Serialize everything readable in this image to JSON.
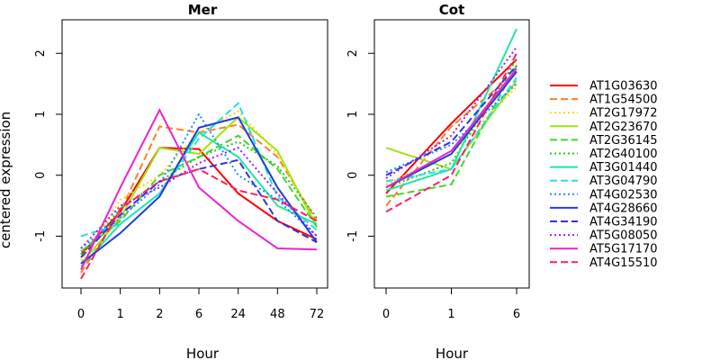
{
  "chart_data": [
    {
      "type": "line",
      "title": "Mer",
      "xlabel": "Hour",
      "ylabel": "centered expression",
      "categories": [
        "0",
        "1",
        "2",
        "6",
        "24",
        "48",
        "72"
      ],
      "ylim": [
        -1.85,
        2.55
      ],
      "yticks": [
        -1,
        0,
        1,
        2
      ],
      "series": [
        {
          "name": "AT1G03630",
          "values": [
            -1.3,
            -0.6,
            0.45,
            0.43,
            -0.3,
            -0.75,
            -1.05
          ]
        },
        {
          "name": "AT1G54500",
          "values": [
            -1.6,
            -0.6,
            0.8,
            0.7,
            0.83,
            0.3,
            -0.75
          ]
        },
        {
          "name": "AT2G17972",
          "values": [
            -1.4,
            -0.4,
            0.0,
            0.7,
            1.05,
            0.35,
            -0.8
          ]
        },
        {
          "name": "AT2G23670",
          "values": [
            -1.45,
            -0.7,
            0.45,
            0.35,
            0.95,
            0.4,
            -0.85
          ]
        },
        {
          "name": "AT2G36145",
          "values": [
            -1.25,
            -0.75,
            0.0,
            0.3,
            0.65,
            0.1,
            -0.85
          ]
        },
        {
          "name": "AT2G40100",
          "values": [
            -1.3,
            -0.55,
            -0.1,
            0.3,
            0.55,
            0.15,
            -0.7
          ]
        },
        {
          "name": "AT3G01440",
          "values": [
            -1.5,
            -0.8,
            -0.3,
            0.7,
            0.3,
            -0.5,
            -0.8
          ]
        },
        {
          "name": "AT3G04790",
          "values": [
            -1.0,
            -0.8,
            -0.3,
            0.6,
            1.18,
            -0.35,
            -0.9
          ]
        },
        {
          "name": "AT4G02530",
          "values": [
            -1.2,
            -0.7,
            -0.15,
            1.0,
            0.0,
            -0.4,
            -1.0
          ]
        },
        {
          "name": "AT4G28660",
          "values": [
            -1.45,
            -0.95,
            -0.35,
            0.78,
            0.95,
            -0.2,
            -1.1
          ]
        },
        {
          "name": "AT4G34190",
          "values": [
            -1.35,
            -0.65,
            -0.1,
            0.1,
            0.25,
            -0.75,
            -1.1
          ]
        },
        {
          "name": "AT5G08050",
          "values": [
            -1.2,
            -0.5,
            -0.2,
            0.2,
            0.45,
            -0.3,
            -1.0
          ]
        },
        {
          "name": "AT5G17170",
          "values": [
            -1.55,
            -0.2,
            1.07,
            -0.2,
            -0.75,
            -1.2,
            -1.22
          ]
        },
        {
          "name": "AT4G15510",
          "values": [
            -1.7,
            -0.55,
            -0.1,
            0.1,
            -0.25,
            -0.4,
            -0.75
          ]
        }
      ]
    },
    {
      "type": "line",
      "title": "Cot",
      "xlabel": "Hour",
      "ylabel": "",
      "categories": [
        "0",
        "1",
        "6"
      ],
      "ylim": [
        -1.85,
        2.55
      ],
      "yticks": [
        -1,
        0,
        1,
        2
      ],
      "series": [
        {
          "name": "AT1G03630",
          "values": [
            -0.3,
            0.85,
            1.9
          ]
        },
        {
          "name": "AT1G54500",
          "values": [
            -0.5,
            0.8,
            1.7
          ]
        },
        {
          "name": "AT2G17972",
          "values": [
            -0.15,
            0.35,
            1.45
          ]
        },
        {
          "name": "AT2G23670",
          "values": [
            0.45,
            0.1,
            1.55
          ]
        },
        {
          "name": "AT2G36145",
          "values": [
            -0.35,
            -0.15,
            1.8
          ]
        },
        {
          "name": "AT2G40100",
          "values": [
            -0.2,
            0.2,
            1.9
          ]
        },
        {
          "name": "AT3G01440",
          "values": [
            -0.25,
            0.1,
            2.4
          ]
        },
        {
          "name": "AT3G04790",
          "values": [
            -0.1,
            0.1,
            1.6
          ]
        },
        {
          "name": "AT4G02530",
          "values": [
            0.05,
            0.5,
            1.5
          ]
        },
        {
          "name": "AT4G28660",
          "values": [
            -0.2,
            0.35,
            1.7
          ]
        },
        {
          "name": "AT4G34190",
          "values": [
            0.0,
            0.55,
            1.8
          ]
        },
        {
          "name": "AT5G08050",
          "values": [
            -0.05,
            0.65,
            2.1
          ]
        },
        {
          "name": "AT5G17170",
          "values": [
            -0.2,
            0.4,
            1.75
          ]
        },
        {
          "name": "AT4G15510",
          "values": [
            -0.6,
            0.0,
            2.0
          ]
        }
      ]
    }
  ],
  "series_styles": [
    {
      "color": "#FF0000",
      "dash": "solid"
    },
    {
      "color": "#FF7F24",
      "dash": "dashed"
    },
    {
      "color": "#FFD700",
      "dash": "dotted"
    },
    {
      "color": "#A2E312",
      "dash": "solid"
    },
    {
      "color": "#44D62C",
      "dash": "dashed"
    },
    {
      "color": "#22C922",
      "dash": "dotted"
    },
    {
      "color": "#1EE8A0",
      "dash": "solid"
    },
    {
      "color": "#22E0E0",
      "dash": "dashed"
    },
    {
      "color": "#1E90FF",
      "dash": "dotted"
    },
    {
      "color": "#1F3FD6",
      "dash": "solid"
    },
    {
      "color": "#3A2FE0",
      "dash": "dashed"
    },
    {
      "color": "#A020F0",
      "dash": "dotted"
    },
    {
      "color": "#EE22CC",
      "dash": "solid"
    },
    {
      "color": "#FF1F5F",
      "dash": "dashed"
    }
  ],
  "legend": {
    "position": "right",
    "entries": [
      "AT1G03630",
      "AT1G54500",
      "AT2G17972",
      "AT2G23670",
      "AT2G36145",
      "AT2G40100",
      "AT3G01440",
      "AT3G04790",
      "AT4G02530",
      "AT4G28660",
      "AT4G34190",
      "AT5G08050",
      "AT5G17170",
      "AT4G15510"
    ]
  }
}
